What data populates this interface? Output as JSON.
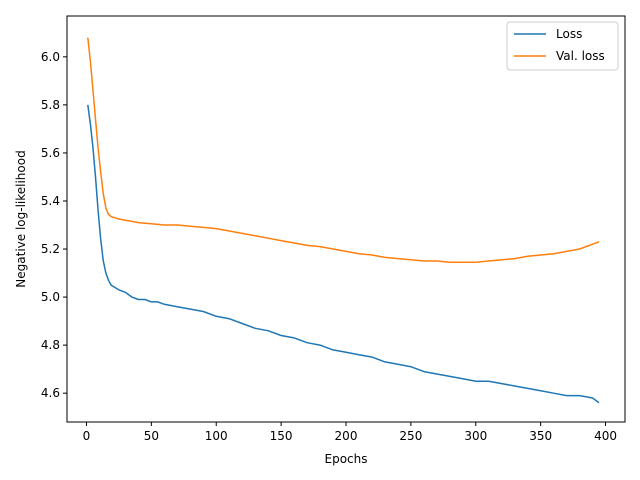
{
  "chart_data": {
    "type": "line",
    "xlabel": "Epochs",
    "ylabel": "Negative log-likelihood",
    "xlim": [
      -15,
      415
    ],
    "ylim": [
      4.48,
      6.17
    ],
    "xticks": [
      0,
      50,
      100,
      150,
      200,
      250,
      300,
      350,
      400
    ],
    "xtick_labels": [
      "0",
      "50",
      "100",
      "150",
      "200",
      "250",
      "300",
      "350",
      "400"
    ],
    "yticks": [
      4.6,
      4.8,
      5.0,
      5.2,
      5.4,
      5.6,
      5.8,
      6.0
    ],
    "ytick_labels": [
      "4.6",
      "4.8",
      "5.0",
      "5.2",
      "5.4",
      "5.6",
      "5.8",
      "6.0"
    ],
    "grid": false,
    "legend": "top-right",
    "series": [
      {
        "name": "Loss",
        "color": "#1f77b4",
        "x": [
          1,
          3,
          5,
          7,
          9,
          11,
          13,
          15,
          17,
          19,
          22,
          25,
          30,
          35,
          40,
          45,
          50,
          55,
          60,
          70,
          80,
          90,
          100,
          110,
          120,
          130,
          140,
          150,
          160,
          170,
          180,
          190,
          200,
          210,
          220,
          230,
          240,
          250,
          260,
          270,
          280,
          290,
          300,
          310,
          320,
          330,
          340,
          350,
          360,
          370,
          380,
          390,
          395
        ],
        "y": [
          5.8,
          5.72,
          5.62,
          5.5,
          5.36,
          5.24,
          5.15,
          5.1,
          5.07,
          5.05,
          5.04,
          5.03,
          5.02,
          5.0,
          4.99,
          4.99,
          4.98,
          4.98,
          4.97,
          4.96,
          4.95,
          4.94,
          4.92,
          4.91,
          4.89,
          4.87,
          4.86,
          4.84,
          4.83,
          4.81,
          4.8,
          4.78,
          4.77,
          4.76,
          4.75,
          4.73,
          4.72,
          4.71,
          4.69,
          4.68,
          4.67,
          4.66,
          4.65,
          4.65,
          4.64,
          4.63,
          4.62,
          4.61,
          4.6,
          4.59,
          4.59,
          4.58,
          4.56
        ]
      },
      {
        "name": "Val. loss",
        "color": "#ff7f0e",
        "x": [
          1,
          3,
          5,
          7,
          9,
          11,
          13,
          15,
          17,
          19,
          22,
          25,
          30,
          35,
          40,
          50,
          60,
          70,
          80,
          90,
          100,
          110,
          120,
          130,
          140,
          150,
          160,
          170,
          180,
          190,
          200,
          210,
          220,
          230,
          240,
          250,
          260,
          270,
          280,
          290,
          300,
          310,
          320,
          330,
          340,
          350,
          360,
          370,
          380,
          390,
          395
        ],
        "y": [
          6.08,
          5.98,
          5.86,
          5.74,
          5.62,
          5.52,
          5.43,
          5.37,
          5.345,
          5.335,
          5.33,
          5.325,
          5.32,
          5.315,
          5.31,
          5.305,
          5.3,
          5.3,
          5.295,
          5.29,
          5.285,
          5.275,
          5.265,
          5.255,
          5.245,
          5.235,
          5.225,
          5.215,
          5.21,
          5.2,
          5.19,
          5.18,
          5.175,
          5.165,
          5.16,
          5.155,
          5.15,
          5.15,
          5.145,
          5.145,
          5.145,
          5.15,
          5.155,
          5.16,
          5.17,
          5.175,
          5.18,
          5.19,
          5.2,
          5.22,
          5.23
        ]
      }
    ]
  }
}
